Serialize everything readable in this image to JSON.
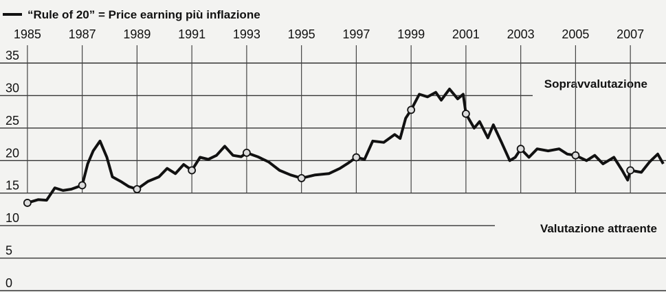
{
  "chart_data": {
    "type": "line",
    "legend_label": "“Rule of 20” = Price earning più inflazione",
    "annotations": [
      "Sopravvalutazione",
      "Valutazione attraente"
    ],
    "color": "#111111",
    "grid": true,
    "xlim": [
      1984,
      2008.3
    ],
    "ylim": [
      0,
      35
    ],
    "xticks": [
      1985,
      1987,
      1989,
      1991,
      1993,
      1995,
      1997,
      1999,
      2001,
      2003,
      2005,
      2007
    ],
    "yticks": [
      0,
      5,
      10,
      15,
      20,
      25,
      30,
      35
    ],
    "x": [
      1985.0,
      1985.4,
      1985.7,
      1986.0,
      1986.3,
      1986.6,
      1987.0,
      1987.2,
      1987.4,
      1987.65,
      1987.9,
      1988.1,
      1988.4,
      1988.7,
      1989.0,
      1989.4,
      1989.8,
      1990.1,
      1990.4,
      1990.7,
      1991.0,
      1991.3,
      1991.6,
      1991.9,
      1992.2,
      1992.5,
      1992.8,
      1993.0,
      1993.4,
      1993.8,
      1994.2,
      1994.6,
      1995.0,
      1995.5,
      1996.0,
      1996.4,
      1996.7,
      1997.0,
      1997.3,
      1997.6,
      1998.0,
      1998.4,
      1998.6,
      1998.8,
      1999.0,
      1999.3,
      1999.6,
      1999.9,
      2000.1,
      2000.4,
      2000.7,
      2000.9,
      2001.0,
      2001.3,
      2001.5,
      2001.8,
      2002.0,
      2002.3,
      2002.6,
      2002.8,
      2003.0,
      2003.3,
      2003.6,
      2004.0,
      2004.4,
      2004.7,
      2005.0,
      2005.4,
      2005.7,
      2006.0,
      2006.4,
      2006.7,
      2006.9,
      2007.0,
      2007.4,
      2007.7,
      2008.0,
      2008.2
    ],
    "values": [
      13.5,
      14.0,
      13.9,
      15.8,
      15.4,
      15.6,
      16.2,
      19.5,
      21.5,
      23.0,
      20.5,
      17.5,
      16.8,
      16.0,
      15.6,
      16.8,
      17.5,
      18.8,
      18.0,
      19.4,
      18.5,
      20.5,
      20.2,
      20.8,
      22.2,
      20.8,
      20.6,
      21.2,
      20.6,
      19.8,
      18.5,
      17.8,
      17.3,
      17.8,
      18.0,
      18.8,
      19.6,
      20.5,
      20.2,
      23.0,
      22.8,
      24.0,
      23.4,
      26.5,
      27.8,
      30.2,
      29.8,
      30.5,
      29.3,
      31.0,
      29.5,
      30.2,
      27.2,
      25.0,
      26.0,
      23.5,
      25.5,
      22.8,
      20.0,
      20.5,
      21.8,
      20.5,
      21.8,
      21.5,
      21.8,
      21.0,
      20.8,
      20.0,
      20.8,
      19.5,
      20.5,
      18.5,
      17.0,
      18.5,
      18.2,
      19.8,
      21.0,
      19.5
    ]
  }
}
